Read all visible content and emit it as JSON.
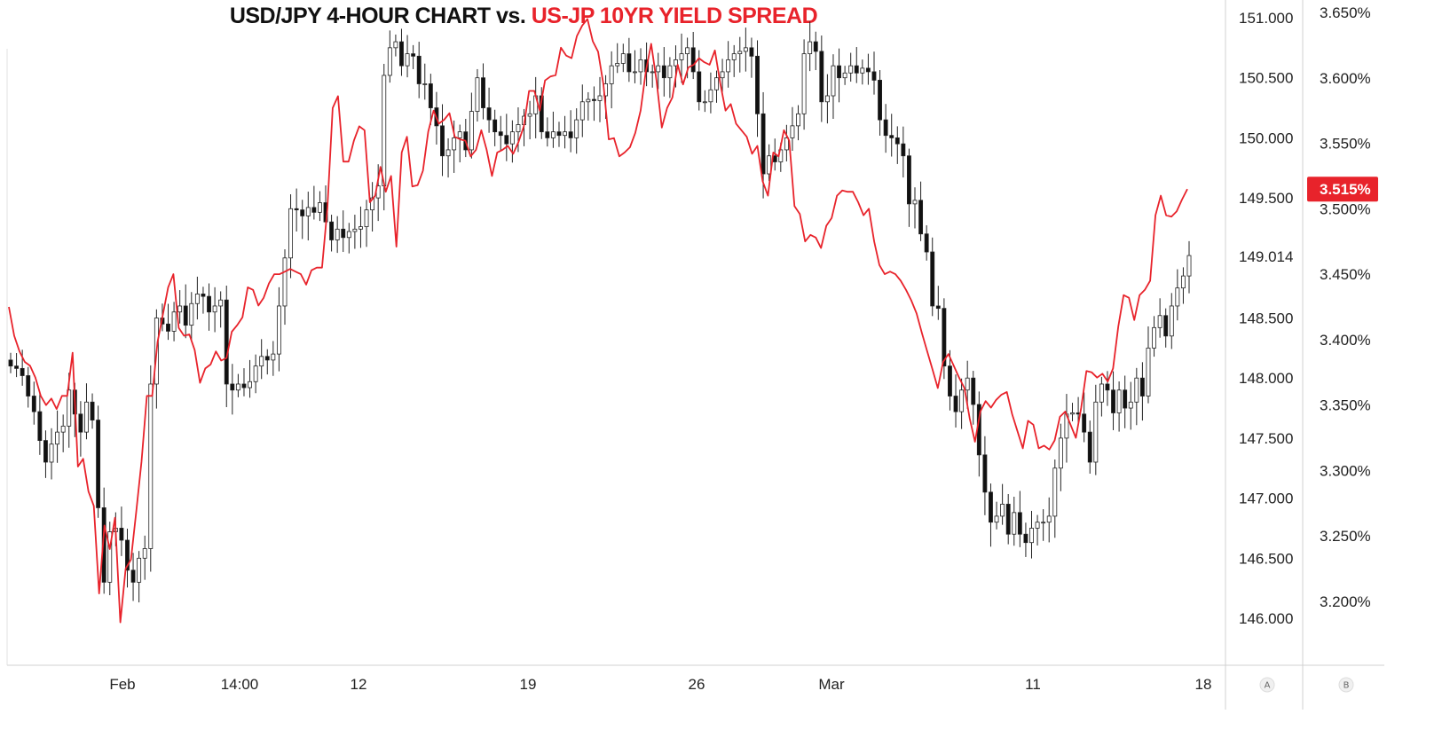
{
  "title": {
    "part_a": "USD/JPY 4-HOUR CHART vs.",
    "part_b": "US-JP 10YR YIELD SPREAD"
  },
  "colors": {
    "spread_line": "#e8232b",
    "candle_down": "#111111",
    "candle_up_fill": "#ffffff",
    "wick": "#222222",
    "grid": "#e6e6e6",
    "badge_bg": "#e8232b",
    "badge_text": "#ffffff"
  },
  "chart_data": {
    "type": "candlestick",
    "title": "USD/JPY 4-HOUR CHART vs. US-JP 10YR YIELD SPREAD",
    "x_axis": {
      "tick_labels": [
        "Feb",
        "14:00",
        "12",
        "19",
        "26",
        "Mar",
        "11",
        "18"
      ]
    },
    "y_axis_a": {
      "tick_labels": [
        "151.000",
        "150.500",
        "150.000",
        "149.500",
        "149.014",
        "148.500",
        "148.000",
        "147.500",
        "147.000",
        "146.500",
        "146.000"
      ],
      "range": [
        145.7,
        151.1
      ],
      "last_price_label": "149.014"
    },
    "y_axis_b": {
      "tick_labels": [
        "3.650%",
        "3.600%",
        "3.550%",
        "3.500%",
        "3.450%",
        "3.400%",
        "3.350%",
        "3.300%",
        "3.250%",
        "3.200%"
      ],
      "range": [
        3.17,
        3.66
      ],
      "last_value_badge": "3.515%"
    },
    "scale_buttons": [
      "A",
      "B"
    ],
    "usdjpy_candles_close": [
      148.1,
      148.08,
      148.02,
      147.85,
      147.72,
      147.48,
      147.3,
      147.45,
      147.55,
      147.6,
      147.9,
      147.7,
      147.55,
      147.8,
      147.65,
      146.92,
      146.3,
      146.72,
      146.75,
      146.65,
      146.4,
      146.3,
      146.5,
      146.58,
      147.95,
      148.5,
      148.45,
      148.39,
      148.55,
      148.6,
      148.44,
      148.62,
      148.7,
      148.68,
      148.55,
      148.6,
      148.65,
      147.95,
      147.9,
      147.95,
      147.92,
      147.97,
      148.1,
      148.18,
      148.15,
      148.2,
      148.6,
      149.0,
      149.41,
      149.4,
      149.35,
      149.42,
      149.38,
      149.46,
      149.3,
      149.15,
      149.24,
      149.17,
      149.22,
      149.24,
      149.26,
      149.4,
      149.5,
      149.6,
      150.52,
      150.75,
      150.8,
      150.6,
      150.7,
      150.68,
      150.45,
      150.45,
      150.25,
      150.1,
      149.85,
      149.9,
      150.0,
      150.05,
      149.9,
      150.22,
      150.5,
      150.25,
      150.15,
      150.05,
      150.02,
      149.95,
      150.05,
      150.11,
      150.18,
      150.2,
      150.35,
      150.05,
      150.0,
      150.05,
      150.02,
      150.05,
      150.0,
      150.15,
      150.3,
      150.32,
      150.31,
      150.35,
      150.45,
      150.6,
      150.62,
      150.7,
      150.55,
      150.55,
      150.65,
      150.55,
      150.55,
      150.6,
      150.5,
      150.6,
      150.65,
      150.7,
      150.75,
      150.55,
      150.3,
      150.3,
      150.4,
      150.5,
      150.55,
      150.65,
      150.7,
      150.72,
      150.75,
      150.68,
      150.2,
      149.7,
      149.85,
      149.8,
      149.9,
      150.0,
      150.1,
      150.2,
      150.7,
      150.8,
      150.72,
      150.3,
      150.35,
      150.6,
      150.5,
      150.54,
      150.6,
      150.54,
      150.58,
      150.55,
      150.48,
      150.15,
      150.02,
      150.0,
      149.95,
      149.85,
      149.45,
      149.48,
      149.2,
      149.05,
      148.6,
      148.58,
      148.1,
      147.85,
      147.72,
      147.9,
      148.0,
      147.78,
      147.36,
      147.05,
      146.8,
      146.85,
      146.95,
      146.7,
      146.88,
      146.7,
      146.63,
      146.75,
      146.8,
      146.8,
      146.85,
      147.25,
      147.5,
      147.7,
      147.71,
      147.7,
      147.55,
      147.3,
      147.8,
      147.95,
      147.9,
      147.71,
      147.9,
      147.75,
      147.8,
      148.0,
      147.85,
      148.25,
      148.42,
      148.52,
      148.35,
      148.6,
      148.75,
      148.85,
      149.02
    ]
  },
  "spread_line_values": [
    3.425,
    3.403,
    3.391,
    3.383,
    3.38,
    3.371,
    3.357,
    3.35,
    3.355,
    3.347,
    3.357,
    3.357,
    3.39,
    3.303,
    3.309,
    3.284,
    3.273,
    3.206,
    3.258,
    3.24,
    3.264,
    3.184,
    3.225,
    3.232,
    3.269,
    3.307,
    3.357,
    3.357,
    3.398,
    3.419,
    3.44,
    3.45,
    3.409,
    3.403,
    3.404,
    3.392,
    3.367,
    3.378,
    3.381,
    3.391,
    3.384,
    3.386,
    3.406,
    3.411,
    3.417,
    3.44,
    3.438,
    3.426,
    3.432,
    3.443,
    3.45,
    3.45,
    3.452,
    3.454,
    3.452,
    3.45,
    3.442,
    3.453,
    3.455,
    3.455,
    3.5,
    3.577,
    3.586,
    3.536,
    3.536,
    3.552,
    3.563,
    3.56,
    3.505,
    3.51,
    3.532,
    3.513,
    3.525,
    3.471,
    3.543,
    3.555,
    3.517,
    3.518,
    3.529,
    3.559,
    3.575,
    3.565,
    3.568,
    3.573,
    3.555,
    3.553,
    3.552,
    3.54,
    3.545,
    3.56,
    3.545,
    3.525,
    3.543,
    3.545,
    3.548,
    3.542,
    3.551,
    3.563,
    3.59,
    3.59,
    3.575,
    3.598,
    3.601,
    3.602,
    3.623,
    3.617,
    3.615,
    3.632,
    3.64,
    3.645,
    3.628,
    3.62,
    3.595,
    3.553,
    3.554,
    3.54,
    3.543,
    3.547,
    3.558,
    3.575,
    3.605,
    3.626,
    3.598,
    3.562,
    3.577,
    3.585,
    3.61,
    3.595,
    3.608,
    3.61,
    3.615,
    3.612,
    3.61,
    3.621,
    3.596,
    3.575,
    3.58,
    3.565,
    3.56,
    3.555,
    3.542,
    3.548,
    3.521,
    3.51,
    3.543,
    3.54,
    3.56,
    3.552,
    3.502,
    3.496,
    3.475,
    3.48,
    3.478,
    3.47,
    3.487,
    3.493,
    3.51,
    3.514,
    3.513,
    3.513,
    3.505,
    3.495,
    3.5,
    3.475,
    3.457,
    3.45,
    3.452,
    3.45,
    3.445,
    3.438,
    3.43,
    3.42,
    3.405,
    3.391,
    3.377,
    3.363,
    3.383,
    3.389,
    3.38,
    3.371,
    3.363,
    3.34,
    3.322,
    3.345,
    3.353,
    3.348,
    3.354,
    3.358,
    3.36,
    3.343,
    3.33,
    3.317,
    3.338,
    3.335,
    3.317,
    3.319,
    3.316,
    3.323,
    3.341,
    3.345,
    3.335,
    3.325,
    3.348,
    3.376,
    3.375,
    3.371,
    3.374,
    3.368,
    3.378,
    3.41,
    3.434,
    3.432,
    3.415,
    3.434,
    3.438,
    3.445,
    3.495,
    3.51,
    3.495,
    3.494,
    3.498,
    3.507,
    3.515
  ]
}
